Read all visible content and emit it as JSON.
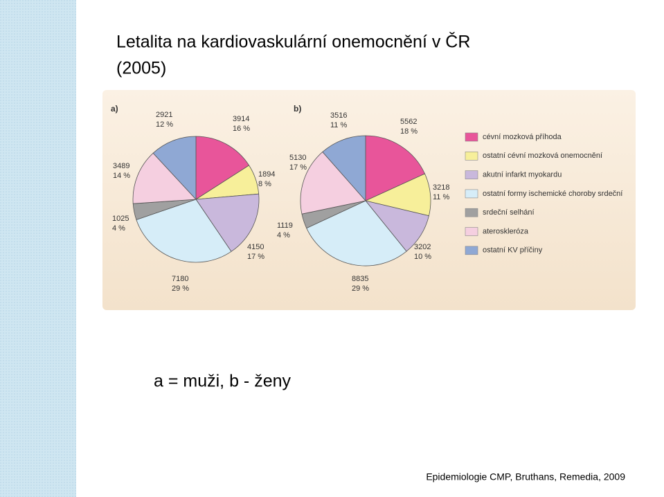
{
  "title_lines": [
    "Letalita na kardiovaskulární onemocnění v ČR",
    "(2005)"
  ],
  "legend": {
    "labels": [
      "cévní mozková příhoda",
      "ostatní cévní mozková onemocnění",
      "akutní infarkt myokardu",
      "ostatní formy ischemické choroby srdeční",
      "srdeční selhání",
      "ateroskleróza",
      "ostatní KV příčiny"
    ],
    "colors": [
      "#e8559a",
      "#f7ef9a",
      "#c9b8dc",
      "#d6edf8",
      "#a0a0a0",
      "#f5cfe0",
      "#8fa8d4"
    ]
  },
  "chart_data": [
    {
      "type": "pie",
      "title": "a)",
      "values": [
        3914,
        1894,
        4150,
        7180,
        1025,
        3489,
        2921
      ],
      "percentages": [
        16,
        8,
        17,
        29,
        4,
        14,
        12
      ],
      "percentage_labels": [
        "16 %",
        "8 %",
        "17 %",
        "29 %",
        "4 %",
        "14 %",
        "12 %"
      ]
    },
    {
      "type": "pie",
      "title": "b)",
      "values": [
        5562,
        3218,
        3202,
        8835,
        1119,
        5130,
        3516
      ],
      "percentages": [
        18,
        11,
        10,
        29,
        4,
        17,
        11
      ],
      "percentage_labels": [
        "18 %",
        "11 %",
        "10 %",
        "29 %",
        "4 %",
        "17 %",
        "11 %"
      ]
    }
  ],
  "caption": "a = muži, b - ženy",
  "source": "Epidemiologie CMP, Bruthans, Remedia, 2009"
}
